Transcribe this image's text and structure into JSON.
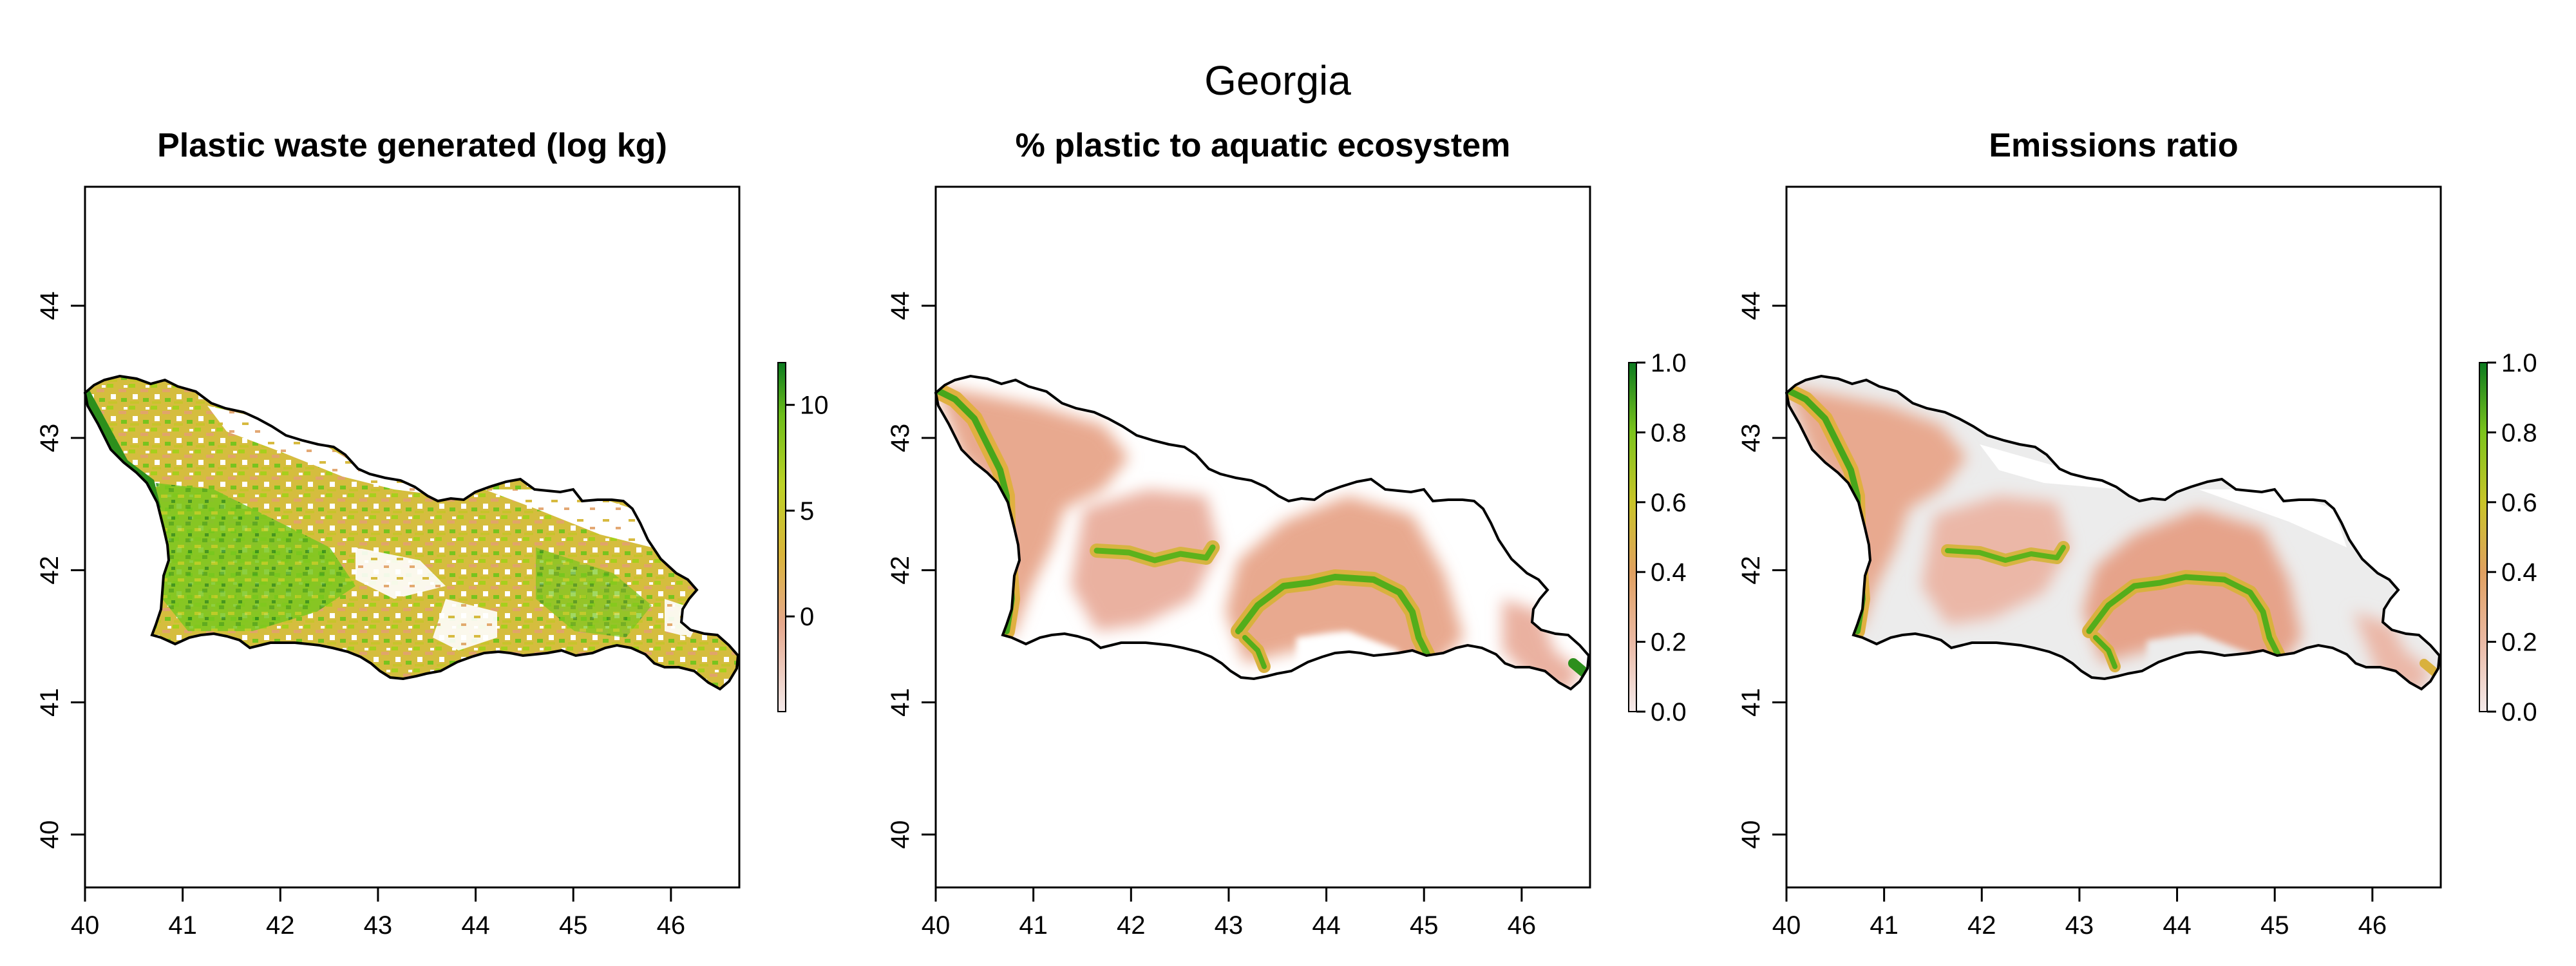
{
  "figure": {
    "title": "Georgia"
  },
  "panels": [
    {
      "title": "Plastic waste generated (log kg)",
      "xticks": [
        "40",
        "41",
        "42",
        "43",
        "44",
        "45",
        "46"
      ],
      "yticks": [
        "40",
        "41",
        "42",
        "43",
        "44"
      ],
      "legend": {
        "labels": [
          "0",
          "5",
          "10"
        ],
        "values": [
          0,
          5,
          10
        ],
        "range": [
          -4.5,
          12
        ]
      }
    },
    {
      "title": "% plastic to aquatic ecosystem",
      "xticks": [
        "40",
        "41",
        "42",
        "43",
        "44",
        "45",
        "46"
      ],
      "yticks": [
        "40",
        "41",
        "42",
        "43",
        "44"
      ],
      "legend": {
        "labels": [
          "0.0",
          "0.2",
          "0.4",
          "0.6",
          "0.8",
          "1.0"
        ],
        "values": [
          0,
          0.2,
          0.4,
          0.6,
          0.8,
          1.0
        ],
        "range": [
          0,
          1
        ]
      }
    },
    {
      "title": "Emissions ratio",
      "xticks": [
        "40",
        "41",
        "42",
        "43",
        "44",
        "45",
        "46"
      ],
      "yticks": [
        "40",
        "41",
        "42",
        "43",
        "44"
      ],
      "legend": {
        "labels": [
          "0.0",
          "0.2",
          "0.4",
          "0.6",
          "0.8",
          "1.0"
        ],
        "values": [
          0,
          0.2,
          0.4,
          0.6,
          0.8,
          1.0
        ],
        "range": [
          0,
          1
        ]
      }
    }
  ],
  "map": {
    "xlim": [
      40,
      46.7
    ],
    "ylim": [
      39.6,
      44.9
    ],
    "colors": {
      "low": "#f2e4e4",
      "mid_low": "#e9a988",
      "mid": "#d7a635",
      "mid_high": "#a6cf1f",
      "high": "#006d1a",
      "background": "#e9e9e9",
      "border": "#000000"
    }
  }
}
